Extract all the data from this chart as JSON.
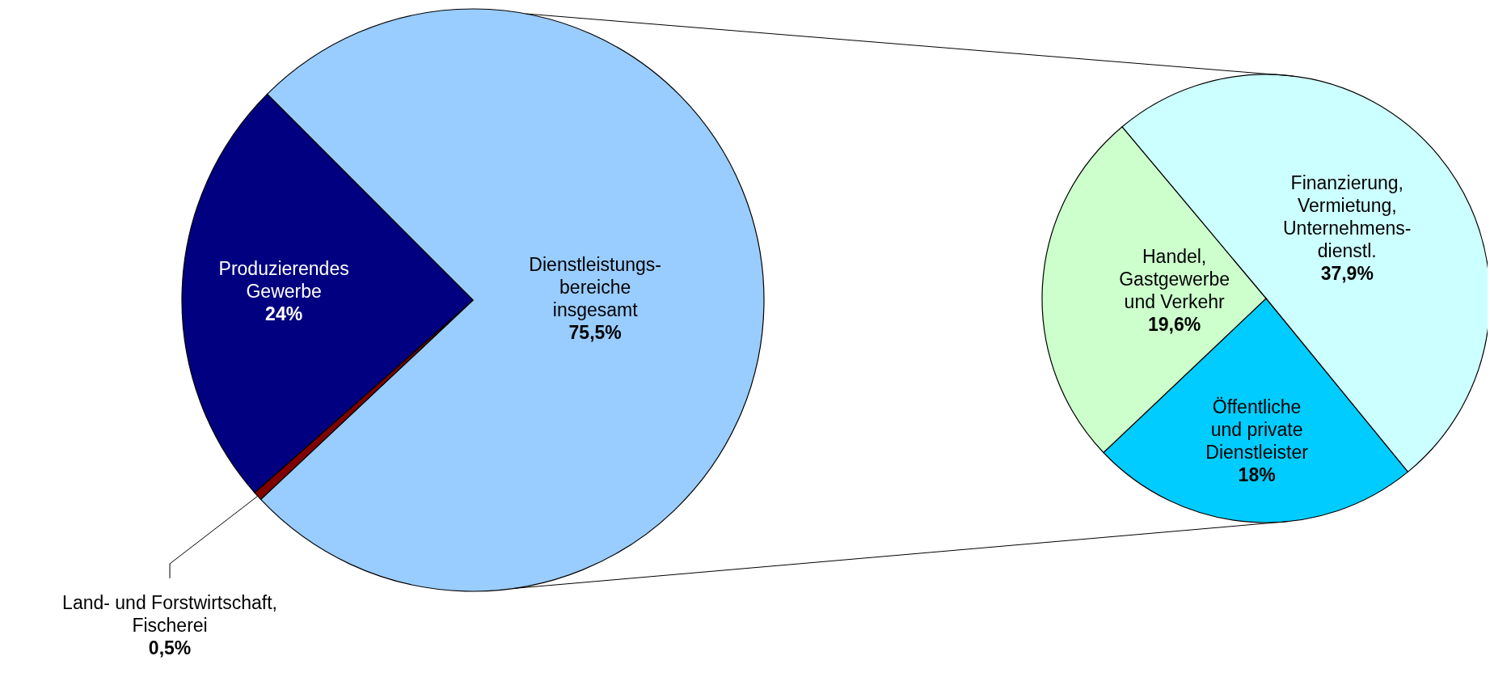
{
  "chart_data": [
    {
      "type": "pie",
      "categories": [
        "Dienstleistungs-\nbereiche\ninsgesamt",
        "Land- und Forstwirtschaft,\nFischerei",
        "Produzierendes\nGewerbe"
      ],
      "values": [
        75.5,
        0.5,
        24
      ],
      "colors": [
        "#99ccff",
        "#800000",
        "#000080"
      ],
      "value_labels": [
        "75,5%",
        "0,5%",
        "24%"
      ]
    },
    {
      "type": "pie",
      "categories": [
        "Finanzierung,\nVermietung,\nUnternehmens-\ndienstl.",
        "Öffentliche\nund private\nDienstleister",
        "Handel,\nGastgewerbe\nund Verkehr"
      ],
      "values": [
        37.9,
        18,
        19.6
      ],
      "colors": [
        "#ccffff",
        "#00ccff",
        "#ccffcc"
      ],
      "value_labels": [
        "37,9%",
        "18%",
        "19,6%"
      ]
    }
  ]
}
